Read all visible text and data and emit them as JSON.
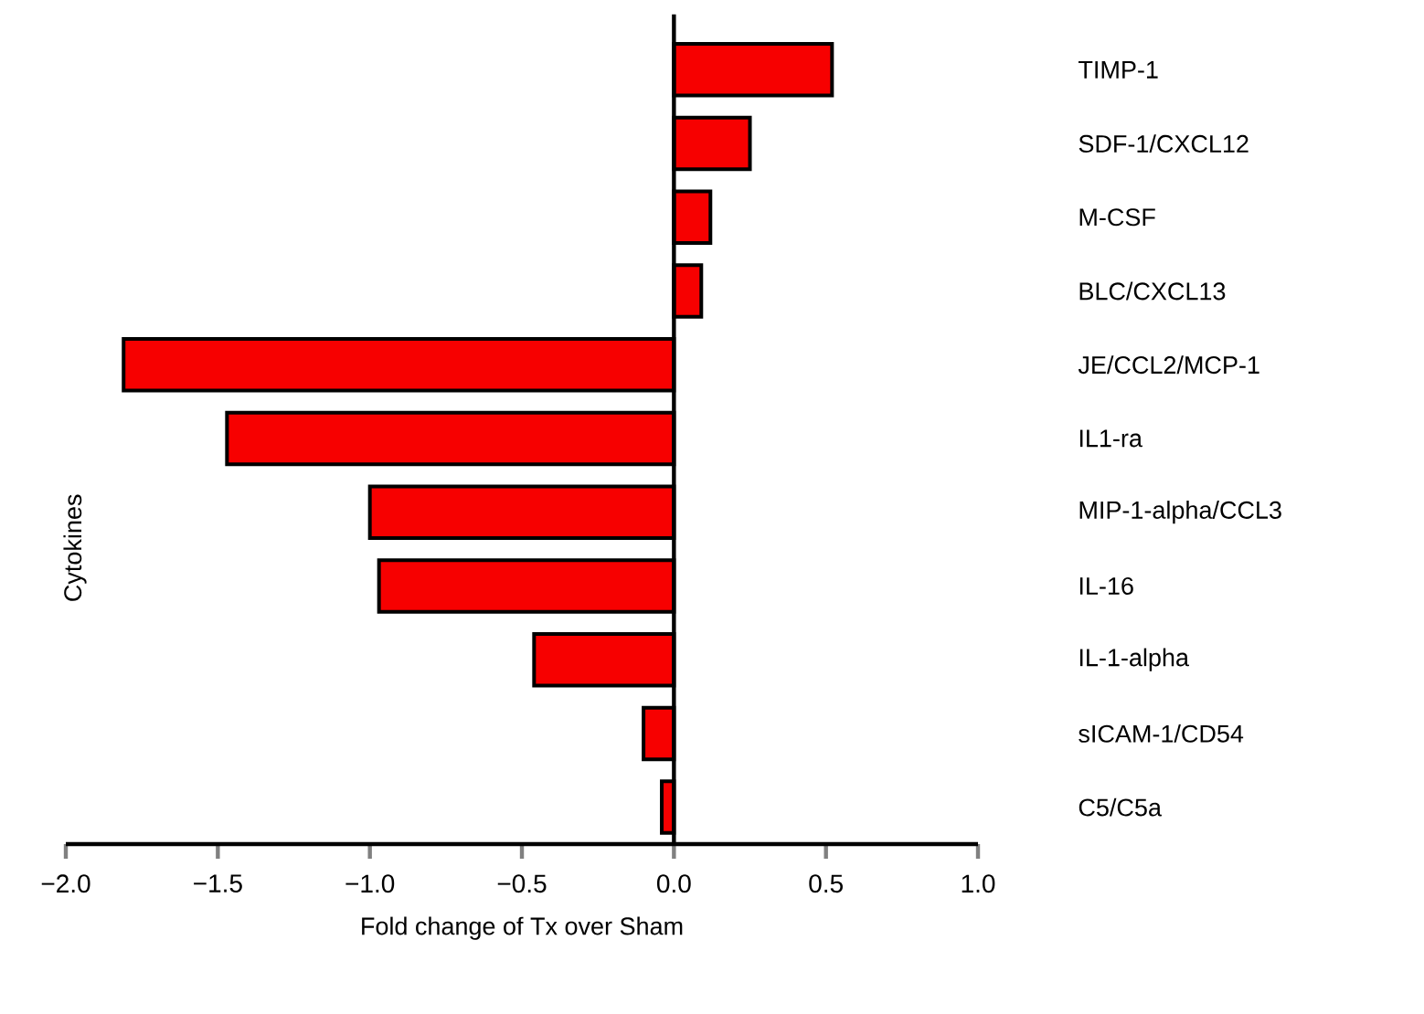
{
  "chart_data": {
    "type": "bar",
    "orientation": "horizontal",
    "xlabel": "Fold change of Tx over Sham",
    "ylabel": "Cytokines",
    "categories": [
      "TIMP-1",
      "SDF-1/CXCL12",
      "M-CSF",
      "BLC/CXCL13",
      "JE/CCL2/MCP-1",
      "IL1-ra",
      "MIP-1-alpha/CCL3",
      "IL-16",
      "IL-1-alpha",
      "sICAM-1/CD54",
      "C5/C5a"
    ],
    "values": [
      0.52,
      0.25,
      0.12,
      0.09,
      -1.81,
      -1.47,
      -1.0,
      -0.97,
      -0.46,
      -0.1,
      -0.04
    ],
    "color": "#f70000",
    "xlim": [
      -2,
      1
    ],
    "xticks": [
      {
        "value": -2,
        "label": "−2.0"
      },
      {
        "value": -1.5,
        "label": "−1.5"
      },
      {
        "value": -1,
        "label": "−1.0"
      },
      {
        "value": -0.5,
        "label": "−0.5"
      },
      {
        "value": 0,
        "label": "0.0"
      },
      {
        "value": 0.5,
        "label": "0.5"
      },
      {
        "value": 1,
        "label": "1.0"
      }
    ]
  }
}
